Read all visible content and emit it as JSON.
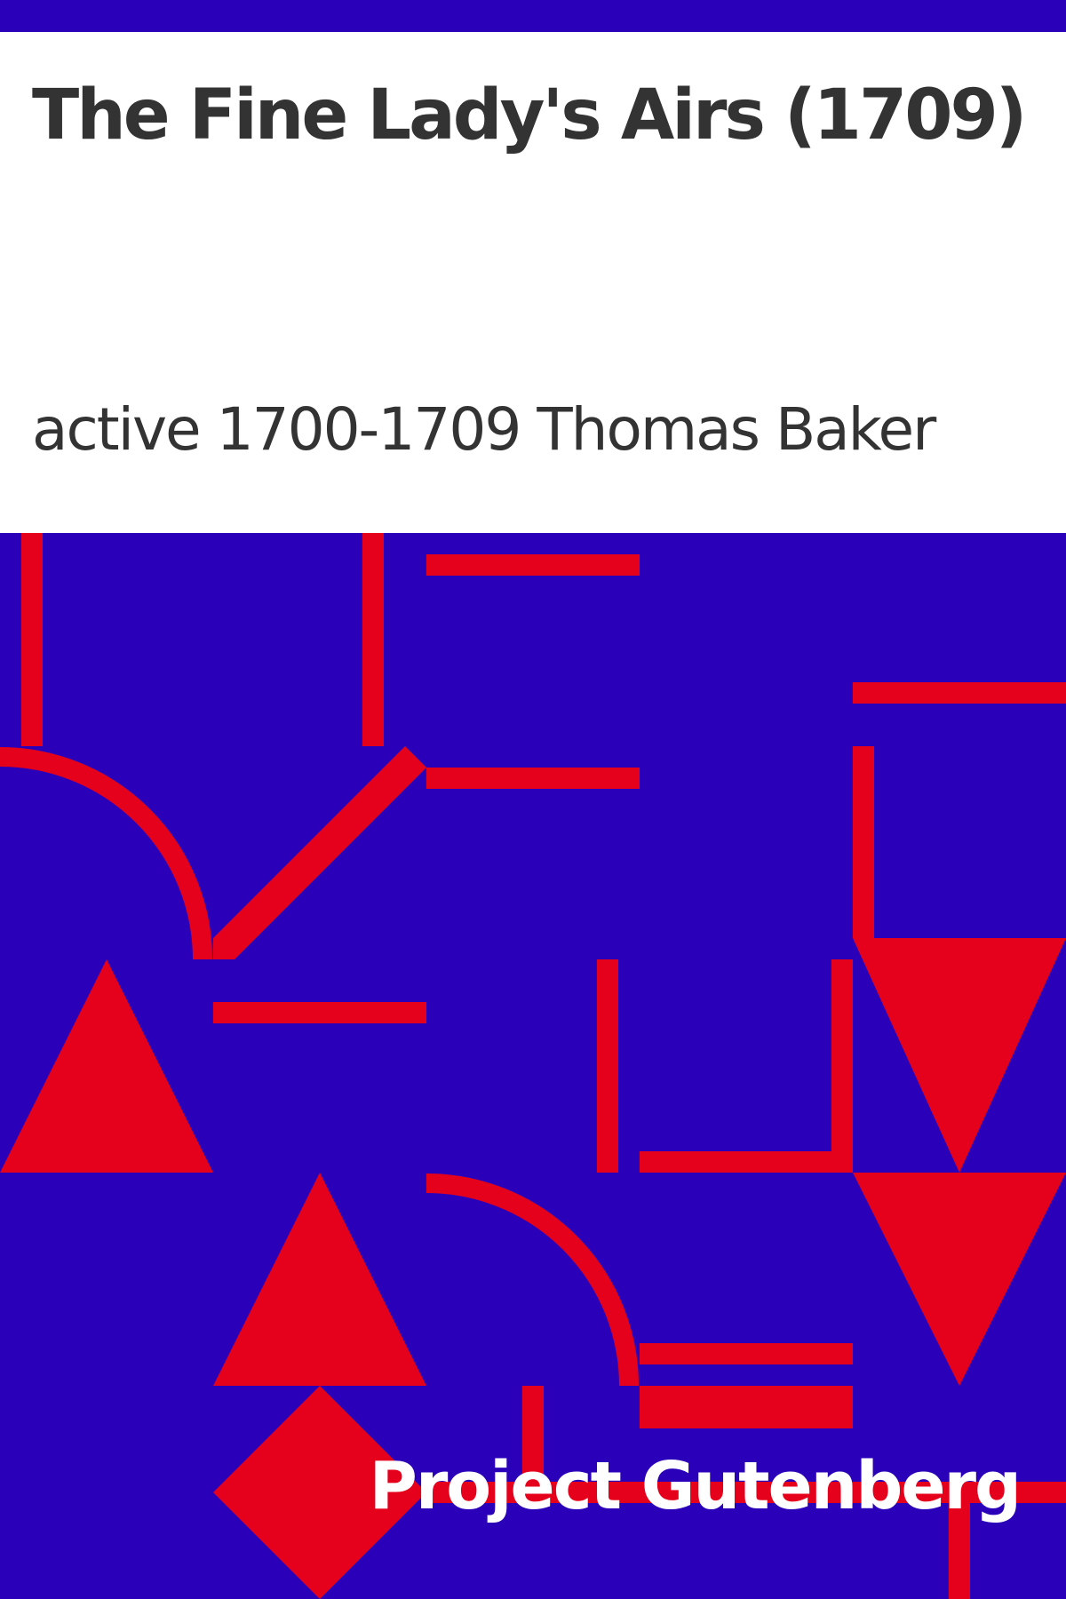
{
  "cover": {
    "title": "The Fine Lady's Airs (1709)",
    "author": "active 1700-1709 Thomas Baker",
    "publisher": "Project Gutenberg"
  },
  "colors": {
    "background_top": "#ffffff",
    "band": "#2a00b8",
    "art_background": "#2a00b8",
    "shapes": "#e5001c",
    "title_text": "#333333",
    "publisher_text": "#ffffff"
  }
}
